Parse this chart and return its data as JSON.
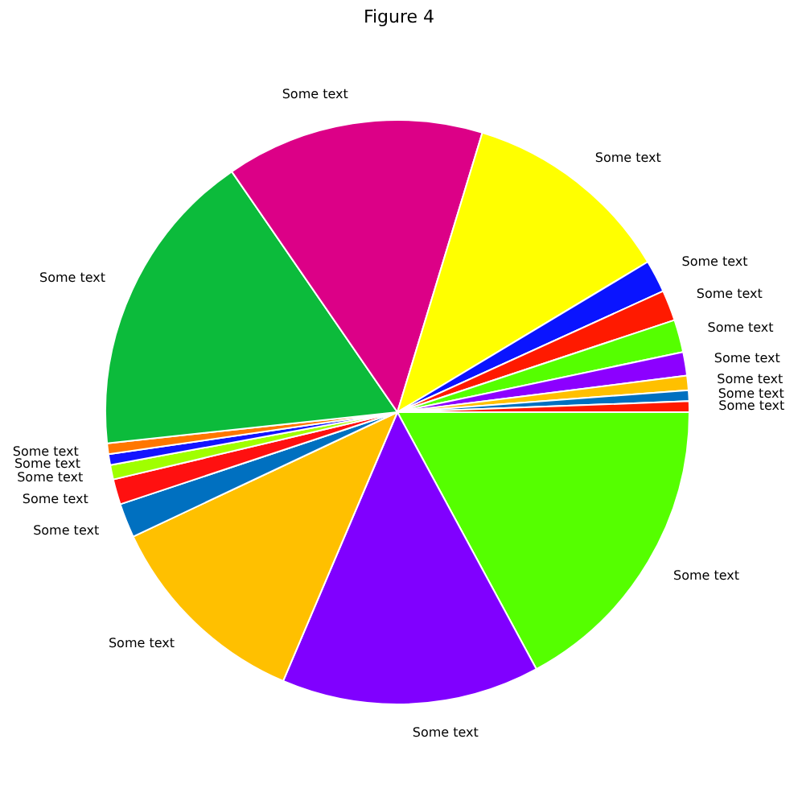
{
  "chart_data": {
    "type": "pie",
    "title": "Figure 4",
    "categories": [
      "Some text",
      "Some text",
      "Some text",
      "Some text",
      "Some text",
      "Some text",
      "Some text",
      "Some text",
      "Some text",
      "Some text",
      "Some text",
      "Some text",
      "Some text",
      "Some text",
      "Some text",
      "Some text",
      "Some text",
      "Some text"
    ],
    "values": [
      0.6,
      0.6,
      0.8,
      1.3,
      1.8,
      1.7,
      1.8,
      11.7,
      14.3,
      17.1,
      0.6,
      0.6,
      0.8,
      1.4,
      1.9,
      11.6,
      14.3,
      17.1
    ],
    "colors": [
      "#ff1a00",
      "#0070c0",
      "#ffc000",
      "#8c00ff",
      "#55ff00",
      "#ff1a00",
      "#0a14ff",
      "#ffff00",
      "#dc0087",
      "#0cbb3b",
      "#ff7700",
      "#1414ff",
      "#a0ff00",
      "#ff1010",
      "#0070c0",
      "#ffc000",
      "#8000ff",
      "#55ff00"
    ],
    "legend": false
  }
}
